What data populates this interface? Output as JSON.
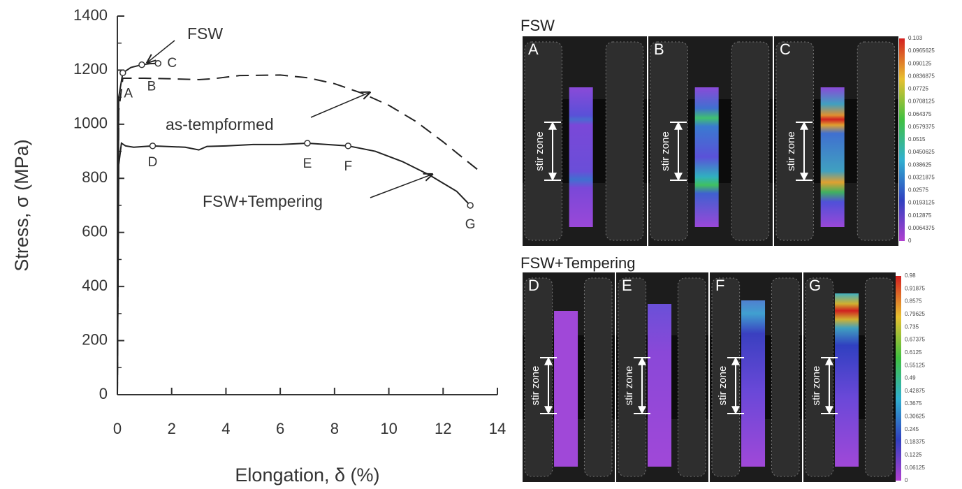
{
  "chart_data": {
    "type": "line",
    "xlabel": "Elongation, δ (%)",
    "ylabel": "Stress, σ (MPa)",
    "xlim": [
      0,
      14
    ],
    "ylim": [
      0,
      1400
    ],
    "xticks": [
      0,
      2,
      4,
      6,
      8,
      10,
      12,
      14
    ],
    "yticks": [
      0,
      200,
      400,
      600,
      800,
      1000,
      1200,
      1400
    ],
    "yminorticks": [
      100,
      300,
      500,
      700,
      900,
      1100,
      1300
    ],
    "series": [
      {
        "name": "FSW",
        "color": "#222222",
        "dashed": false,
        "x": [
          0,
          0.05,
          0.2,
          0.5,
          0.9,
          1.2,
          1.5
        ],
        "values": [
          0,
          1100,
          1190,
          1210,
          1220,
          1224,
          1225
        ]
      },
      {
        "name": "as-tempformed",
        "color": "#222222",
        "dashed": true,
        "x": [
          0,
          0.05,
          0.2,
          1,
          2,
          3,
          3.5,
          4.5,
          6,
          7,
          8,
          9,
          10,
          11,
          12,
          12.8,
          13.3
        ],
        "values": [
          0,
          1050,
          1170,
          1170,
          1168,
          1165,
          1168,
          1180,
          1182,
          1172,
          1150,
          1115,
          1070,
          1010,
          935,
          870,
          830
        ]
      },
      {
        "name": "FSW+Tempering",
        "color": "#222222",
        "dashed": false,
        "x": [
          0,
          0.05,
          0.15,
          0.3,
          0.6,
          1.3,
          2.5,
          3,
          3.3,
          4,
          5,
          6,
          7,
          8.5,
          9.5,
          10.5,
          11.5,
          12.5,
          13
        ],
        "values": [
          0,
          850,
          930,
          920,
          915,
          920,
          915,
          905,
          918,
          920,
          925,
          925,
          930,
          920,
          900,
          862,
          812,
          752,
          700
        ]
      }
    ],
    "points": [
      {
        "label": "A",
        "x": 0.2,
        "y": 1190
      },
      {
        "label": "B",
        "x": 0.9,
        "y": 1220
      },
      {
        "label": "C",
        "x": 1.5,
        "y": 1225
      },
      {
        "label": "D",
        "x": 1.3,
        "y": 920
      },
      {
        "label": "E",
        "x": 7,
        "y": 930
      },
      {
        "label": "F",
        "x": 8.5,
        "y": 920
      },
      {
        "label": "G",
        "x": 13,
        "y": 700
      }
    ]
  },
  "fsw_section": {
    "title": "FSW",
    "panels": [
      "A",
      "B",
      "C"
    ],
    "colorbar": [
      "0.103",
      "0.0965625",
      "0.090125",
      "0.0836875",
      "0.07725",
      "0.0708125",
      "0.064375",
      "0.0579375",
      "0.0515",
      "0.0450625",
      "0.038625",
      "0.0321875",
      "0.02575",
      "0.0193125",
      "0.012875",
      "0.0064375",
      "0"
    ]
  },
  "tempering_section": {
    "title": "FSW+Tempering",
    "panels": [
      "D",
      "E",
      "F",
      "G"
    ],
    "colorbar": [
      "0.98",
      "0.91875",
      "0.8575",
      "0.79625",
      "0.735",
      "0.67375",
      "0.6125",
      "0.55125",
      "0.49",
      "0.42875",
      "0.3675",
      "0.30625",
      "0.245",
      "0.18375",
      "0.1225",
      "0.06125",
      "0"
    ]
  },
  "stir_zone": "stir zone"
}
